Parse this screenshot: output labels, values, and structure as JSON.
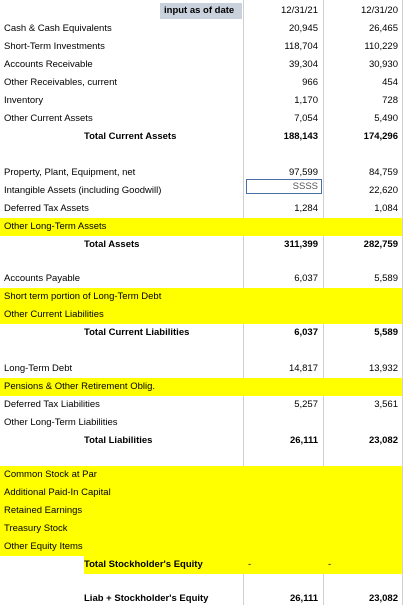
{
  "header": {
    "input_label": "input as of date",
    "col1": "12/31/21",
    "col2": "12/31/20"
  },
  "rows": {
    "cash": {
      "label": "Cash & Cash Equivalents",
      "v1": "20,945",
      "v2": "26,465"
    },
    "sti": {
      "label": "Short-Term Investments",
      "v1": "118,704",
      "v2": "110,229"
    },
    "ar": {
      "label": "Accounts Receivable",
      "v1": "39,304",
      "v2": "30,930"
    },
    "other_rec": {
      "label": "Other Receivables, current",
      "v1": "966",
      "v2": "454"
    },
    "inventory": {
      "label": "Inventory",
      "v1": "1,170",
      "v2": "728"
    },
    "oca": {
      "label": "Other Current Assets",
      "v1": "7,054",
      "v2": "5,490"
    },
    "tca": {
      "label": "Total Current Assets",
      "v1": "188,143",
      "v2": "174,296"
    },
    "ppe": {
      "label": "Property, Plant, Equipment, net",
      "v1": "97,599",
      "v2": "84,759"
    },
    "intangible": {
      "label": "Intangible Assets (including Goodwill)",
      "v1": "SSSS",
      "v2": "22,620"
    },
    "dta": {
      "label": "Deferred Tax Assets",
      "v1": "1,284",
      "v2": "1,084"
    },
    "olta": {
      "label": "Other Long-Term Assets",
      "v1": "",
      "v2": ""
    },
    "ta": {
      "label": "Total Assets",
      "v1": "311,399",
      "v2": "282,759"
    },
    "ap": {
      "label": "Accounts Payable",
      "v1": "6,037",
      "v2": "5,589"
    },
    "stltd": {
      "label": "Short term portion of Long-Term Debt",
      "v1": "",
      "v2": ""
    },
    "ocl": {
      "label": "Other Current Liabilities",
      "v1": "",
      "v2": ""
    },
    "tcl": {
      "label": "Total Current Liabilities",
      "v1": "6,037",
      "v2": "5,589"
    },
    "ltd": {
      "label": "Long-Term Debt",
      "v1": "14,817",
      "v2": "13,932"
    },
    "pension": {
      "label": "Pensions & Other Retirement Oblig.",
      "v1": "",
      "v2": ""
    },
    "dtl": {
      "label": "Deferred Tax Liabilities",
      "v1": "5,257",
      "v2": "3,561"
    },
    "oltl": {
      "label": "Other Long-Term Liabilities",
      "v1": "",
      "v2": ""
    },
    "tl": {
      "label": "Total Liabilities",
      "v1": "26,111",
      "v2": "23,082"
    },
    "csp": {
      "label": "Common Stock at Par",
      "v1": "",
      "v2": ""
    },
    "apic": {
      "label": "Additional Paid-In Capital",
      "v1": "",
      "v2": ""
    },
    "re": {
      "label": "Retained Earnings",
      "v1": "",
      "v2": ""
    },
    "ts": {
      "label": "Treasury Stock",
      "v1": "",
      "v2": ""
    },
    "oei": {
      "label": "Other Equity Items",
      "v1": "",
      "v2": ""
    },
    "tse": {
      "label": "Total Stockholder's Equity",
      "v1": "-",
      "v2": "-"
    },
    "lse": {
      "label": "Liab + Stockholder's Equity",
      "v1": "26,111",
      "v2": "23,082"
    }
  },
  "colors": {
    "highlight": "#ffff00",
    "header_input_bg": "#c9d1dc"
  }
}
